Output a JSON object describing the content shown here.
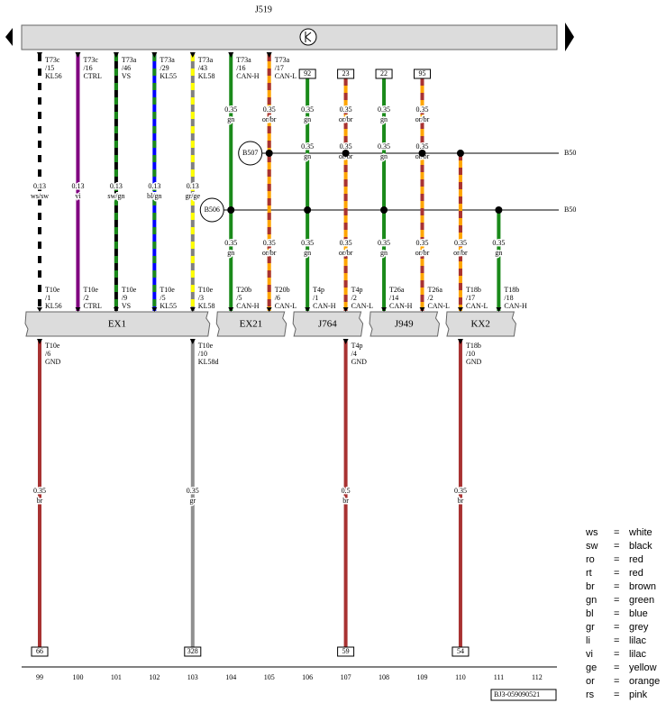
{
  "header": {
    "title": "J519"
  },
  "splices": [
    {
      "label": "B507",
      "end_label": "B50"
    },
    {
      "label": "B506",
      "end_label": "B50"
    }
  ],
  "components": [
    "EX1",
    "EX21",
    "J764",
    "J949",
    "KX2"
  ],
  "columns": [
    {
      "number": "99",
      "top_pin": [
        "T73c",
        "/15",
        "KL56"
      ],
      "size_mid": [
        "0.13",
        "ws/sw"
      ],
      "bottom_pin": [
        "T10e",
        "/1",
        "KL56"
      ],
      "colors": [
        "#ffffff",
        "#000000"
      ],
      "ground": {
        "pin": [
          "T10e",
          "/6",
          "GND"
        ],
        "size": [
          "0.35",
          "br"
        ],
        "box": "66",
        "colors": [
          "#a83232"
        ]
      }
    },
    {
      "number": "100",
      "top_pin": [
        "T73c",
        "/16",
        "CTRL"
      ],
      "size_mid": [
        "0.13",
        "vi"
      ],
      "bottom_pin": [
        "T10e",
        "/2",
        "CTRL"
      ],
      "colors": [
        "#800080"
      ]
    },
    {
      "number": "101",
      "top_pin": [
        "T73a",
        "/46",
        "VS"
      ],
      "size_mid": [
        "0.13",
        "sw/gn"
      ],
      "bottom_pin": [
        "T10e",
        "/9",
        "VS"
      ],
      "colors": [
        "#000000",
        "#1a8a1a"
      ]
    },
    {
      "number": "102",
      "top_pin": [
        "T73a",
        "/29",
        "KL55"
      ],
      "size_mid": [
        "0.13",
        "bl/gn"
      ],
      "bottom_pin": [
        "T10e",
        "/5",
        "KL55"
      ],
      "colors": [
        "#0000ff",
        "#1a8a1a"
      ]
    },
    {
      "number": "103",
      "top_pin": [
        "T73a",
        "/43",
        "KL58"
      ],
      "size_mid": [
        "0.13",
        "gr/ge"
      ],
      "bottom_pin": [
        "T10e",
        "/3",
        "KL58"
      ],
      "colors": [
        "#808080",
        "#ffff00"
      ],
      "ground": {
        "pin": [
          "T10e",
          "/10",
          "KL58d"
        ],
        "size": [
          "0.35",
          "gr"
        ],
        "box": "328",
        "colors": [
          "#909090"
        ]
      }
    },
    {
      "number": "104",
      "top_pin": [
        "T73a",
        "/16",
        "CAN-H"
      ],
      "size_top": [
        "0.35",
        "gn"
      ],
      "size_low": [
        "0.35",
        "gn"
      ],
      "bottom_pin": [
        "T20b",
        "/5",
        "CAN-H"
      ],
      "colors": [
        "#1a8a1a"
      ]
    },
    {
      "number": "105",
      "top_pin": [
        "T73a",
        "/17",
        "CAN-L"
      ],
      "size_top": [
        "0.35",
        "or/br"
      ],
      "size_low": [
        "0.35",
        "or/br"
      ],
      "bottom_pin": [
        "T20b",
        "/6",
        "CAN-L"
      ],
      "colors": [
        "#ffa500",
        "#a83232"
      ]
    },
    {
      "number": "106",
      "top_box": "92",
      "size_top": [
        "0.35",
        "gn"
      ],
      "size_mid": [
        "0.35",
        "gn"
      ],
      "size_low": [
        "0.35",
        "gn"
      ],
      "bottom_pin": [
        "T4p",
        "/1",
        "CAN-H"
      ],
      "colors": [
        "#1a8a1a"
      ]
    },
    {
      "number": "107",
      "top_box": "23",
      "size_top": [
        "0.35",
        "or/br"
      ],
      "size_mid": [
        "0.35",
        "or/br"
      ],
      "size_low": [
        "0.35",
        "or/br"
      ],
      "bottom_pin": [
        "T4p",
        "/2",
        "CAN-L"
      ],
      "colors": [
        "#ffa500",
        "#a83232"
      ],
      "ground": {
        "pin": [
          "T4p",
          "/4",
          "GND"
        ],
        "size": [
          "0.5",
          "br"
        ],
        "box": "59",
        "colors": [
          "#a83232"
        ]
      }
    },
    {
      "number": "108",
      "top_box": "22",
      "size_top": [
        "0.35",
        "gn"
      ],
      "size_mid": [
        "0.35",
        "gn"
      ],
      "size_low": [
        "0.35",
        "gn"
      ],
      "bottom_pin": [
        "T26a",
        "/14",
        "CAN-H"
      ],
      "colors": [
        "#1a8a1a"
      ]
    },
    {
      "number": "109",
      "top_box": "95",
      "size_top": [
        "0.35",
        "or/br"
      ],
      "size_mid": [
        "0.35",
        "or/br"
      ],
      "size_low": [
        "0.35",
        "or/br"
      ],
      "bottom_pin": [
        "T26a",
        "/2",
        "CAN-L"
      ],
      "colors": [
        "#ffa500",
        "#a83232"
      ]
    },
    {
      "number": "110",
      "size_low": [
        "0.35",
        "or/br"
      ],
      "bottom_pin": [
        "T18b",
        "/17",
        "CAN-L"
      ],
      "colors": [
        "#ffa500",
        "#a83232"
      ],
      "ground": {
        "pin": [
          "T18b",
          "/10",
          "GND"
        ],
        "size": [
          "0.35",
          "br"
        ],
        "box": "54",
        "colors": [
          "#a83232"
        ]
      }
    },
    {
      "number": "111",
      "size_low": [
        "0.35",
        "gn"
      ],
      "bottom_pin": [
        "T18b",
        "/18",
        "CAN-H"
      ],
      "colors": [
        "#1a8a1a"
      ]
    },
    {
      "number": "112"
    }
  ],
  "legend": {
    "separator": "=",
    "rows": [
      [
        "ws",
        "white"
      ],
      [
        "sw",
        "black"
      ],
      [
        "ro",
        "red"
      ],
      [
        "rt",
        "red"
      ],
      [
        "br",
        "brown"
      ],
      [
        "gn",
        "green"
      ],
      [
        "bl",
        "blue"
      ],
      [
        "gr",
        "grey"
      ],
      [
        "li",
        "lilac"
      ],
      [
        "vi",
        "lilac"
      ],
      [
        "ge",
        "yellow"
      ],
      [
        "or",
        "orange"
      ],
      [
        "rs",
        "pink"
      ]
    ]
  },
  "footer": {
    "code": "BJ3-059090521"
  }
}
